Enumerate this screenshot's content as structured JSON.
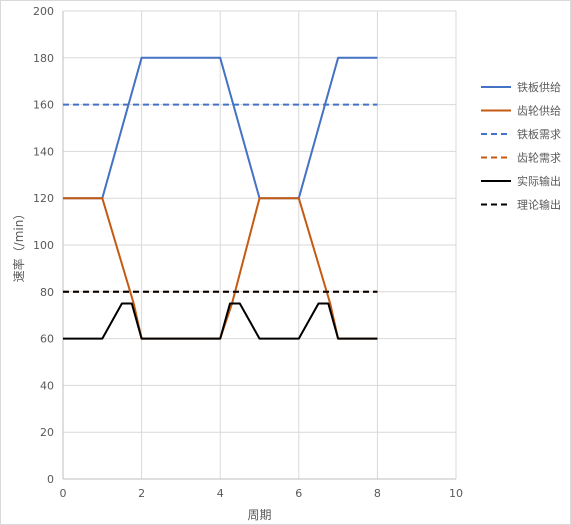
{
  "chart_data": {
    "type": "line",
    "title": "",
    "xlabel": "周期",
    "ylabel": "速率（/min）",
    "xlim": [
      0,
      10
    ],
    "ylim": [
      0,
      200
    ],
    "xticks": [
      0,
      2,
      4,
      6,
      8,
      10
    ],
    "yticks": [
      0,
      20,
      40,
      60,
      80,
      100,
      120,
      140,
      160,
      180,
      200
    ],
    "grid": true,
    "legend_position": "right",
    "series": [
      {
        "name": "铁板供给",
        "color": "#4472c4",
        "dash": "solid",
        "points": [
          [
            0,
            120
          ],
          [
            1,
            120
          ],
          [
            2,
            180
          ],
          [
            4,
            180
          ],
          [
            5,
            120
          ],
          [
            6,
            120
          ],
          [
            7,
            180
          ],
          [
            8,
            180
          ]
        ]
      },
      {
        "name": "齿轮供给",
        "color": "#c55a11",
        "dash": "solid",
        "points": [
          [
            0,
            120
          ],
          [
            1,
            120
          ],
          [
            1.8,
            75
          ],
          [
            2,
            60
          ],
          [
            4,
            60
          ],
          [
            4.3,
            75
          ],
          [
            5,
            120
          ],
          [
            6,
            120
          ],
          [
            6.8,
            75
          ],
          [
            7,
            60
          ],
          [
            8,
            60
          ]
        ]
      },
      {
        "name": "铁板需求",
        "color": "#4472c4",
        "dash": "dashed",
        "points": [
          [
            0,
            160
          ],
          [
            8,
            160
          ]
        ]
      },
      {
        "name": "齿轮需求",
        "color": "#c55a11",
        "dash": "dashed",
        "points": [
          [
            0,
            80
          ],
          [
            8,
            80
          ]
        ]
      },
      {
        "name": "实际输出",
        "color": "#000000",
        "dash": "solid",
        "points": [
          [
            0,
            60
          ],
          [
            1,
            60
          ],
          [
            1.5,
            75
          ],
          [
            1.75,
            75
          ],
          [
            2,
            60
          ],
          [
            4,
            60
          ],
          [
            4.25,
            75
          ],
          [
            4.5,
            75
          ],
          [
            5,
            60
          ],
          [
            6,
            60
          ],
          [
            6.5,
            75
          ],
          [
            6.75,
            75
          ],
          [
            7,
            60
          ],
          [
            8,
            60
          ]
        ]
      },
      {
        "name": "理论输出",
        "color": "#000000",
        "dash": "dashed",
        "points": [
          [
            0,
            80
          ],
          [
            8,
            80
          ]
        ]
      }
    ]
  }
}
